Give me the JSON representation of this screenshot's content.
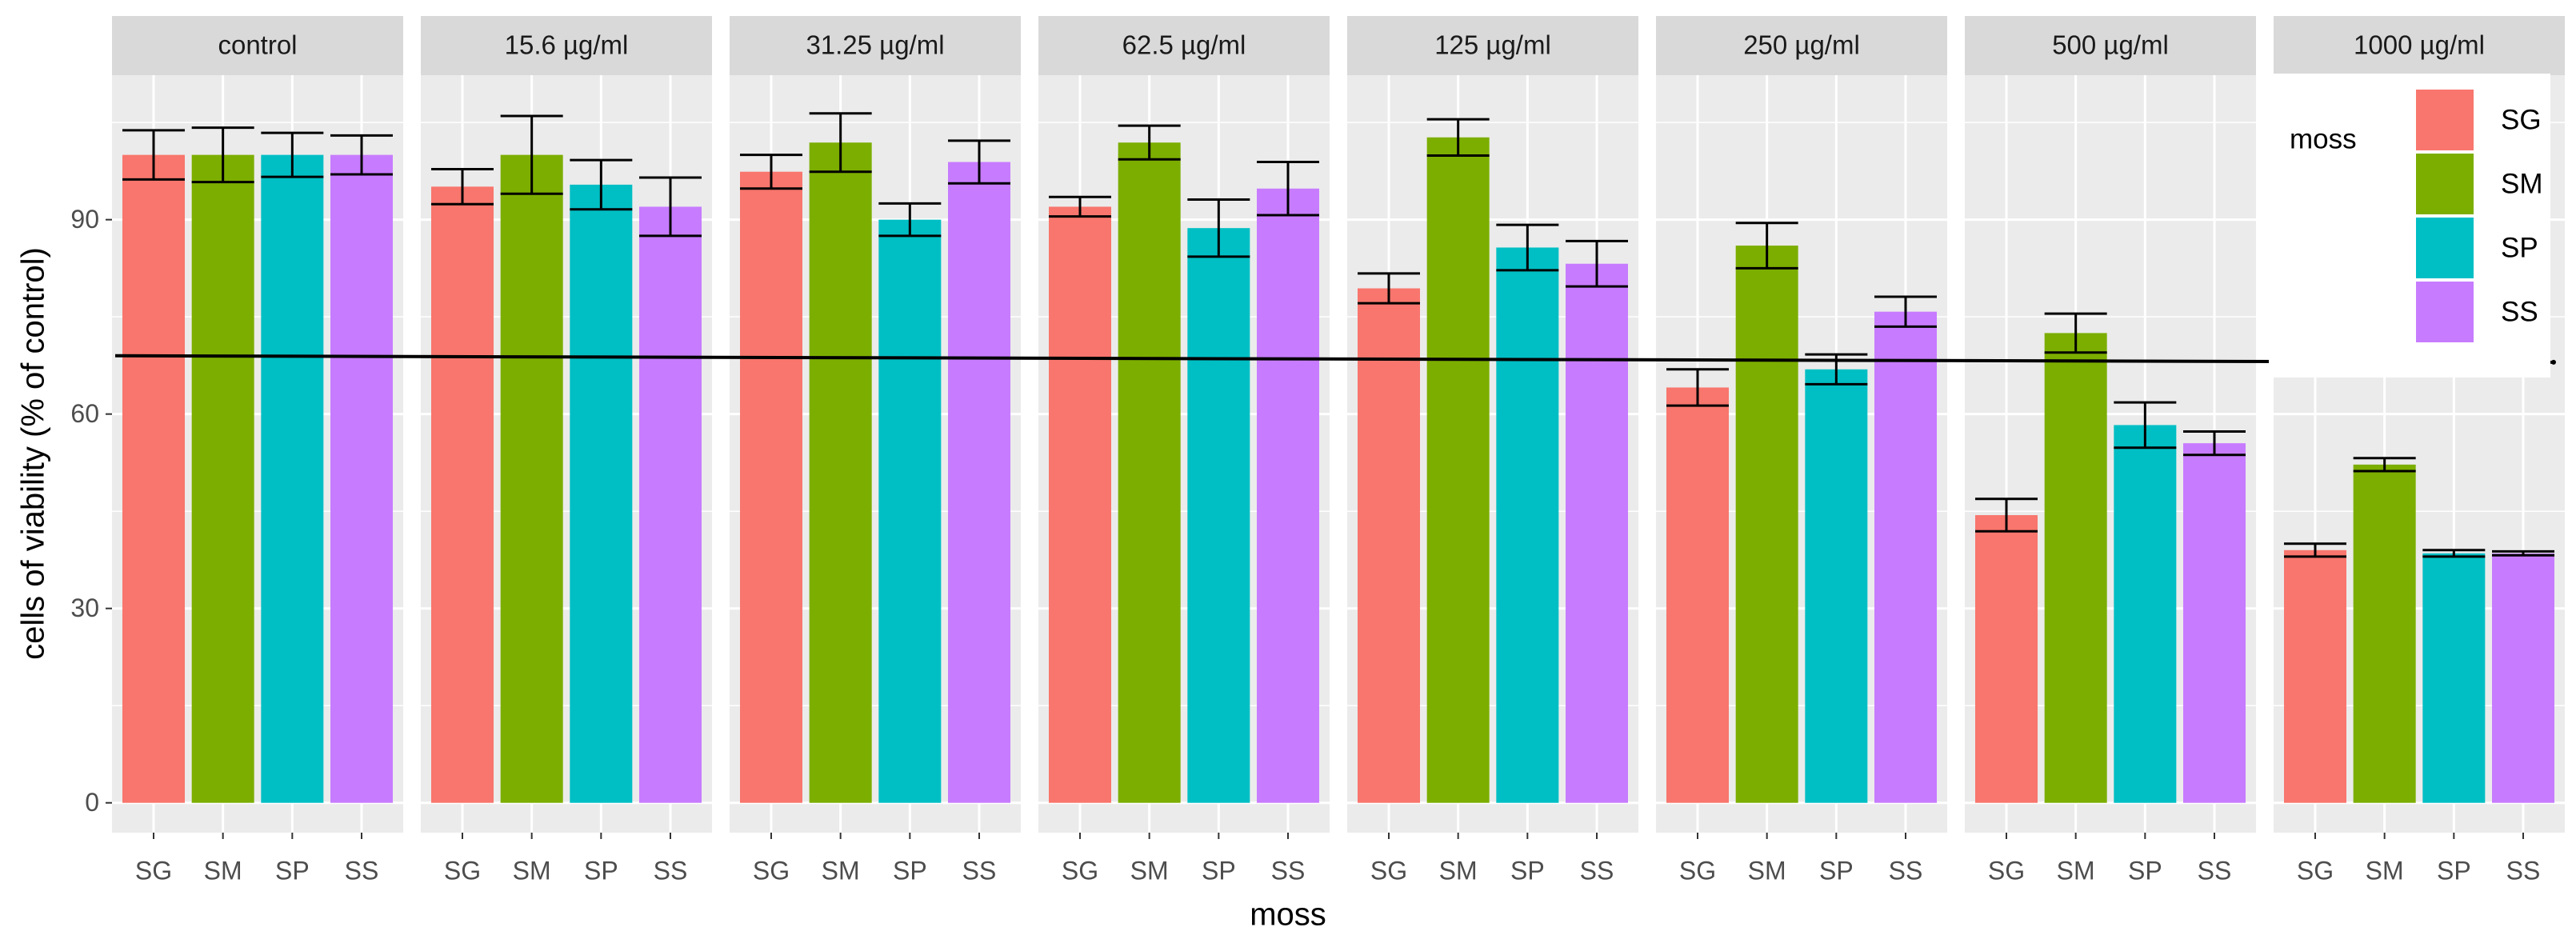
{
  "chart_data": {
    "type": "bar",
    "ylabel": "cells of viability (% of control)",
    "xlabel": "moss",
    "legend_title": "moss",
    "categories": [
      "SG",
      "SM",
      "SP",
      "SS"
    ],
    "colors": [
      "#F8766D",
      "#7CAE00",
      "#00BFC4",
      "#C77CFF"
    ],
    "ylim": [
      -4.6,
      112.3
    ],
    "yticks": [
      0,
      30,
      60,
      90
    ],
    "grid": true,
    "legend": "top-right",
    "reference_line": [
      69,
      68
    ],
    "facets": [
      {
        "title": "control",
        "values": [
          100,
          100,
          100,
          100
        ],
        "errors": [
          3.8,
          4.2,
          3.4,
          3
        ]
      },
      {
        "title": "15.6 µg/ml",
        "values": [
          95.1,
          100,
          95.4,
          92
        ],
        "errors": [
          2.7,
          6,
          3.8,
          4.5
        ]
      },
      {
        "title": "31.25 µg/ml",
        "values": [
          97.4,
          101.9,
          90,
          98.9
        ],
        "errors": [
          2.6,
          4.5,
          2.5,
          3.3
        ]
      },
      {
        "title": "62.5 µg/ml",
        "values": [
          92,
          101.9,
          88.7,
          94.8
        ],
        "errors": [
          1.5,
          2.6,
          4.4,
          4.1
        ]
      },
      {
        "title": "125 µg/ml",
        "values": [
          79.4,
          102.7,
          85.7,
          83.2
        ],
        "errors": [
          2.3,
          2.8,
          3.5,
          3.5
        ]
      },
      {
        "title": "250 µg/ml",
        "values": [
          64.1,
          86,
          66.9,
          75.8
        ],
        "errors": [
          2.8,
          3.5,
          2.3,
          2.3
        ]
      },
      {
        "title": "500 µg/ml",
        "values": [
          44.4,
          72.5,
          58.3,
          55.5
        ],
        "errors": [
          2.5,
          3,
          3.5,
          1.8
        ]
      },
      {
        "title": "1000 µg/ml",
        "values": [
          39,
          52.2,
          38.5,
          38.5
        ],
        "errors": [
          1,
          1,
          0.5,
          0.3
        ]
      }
    ]
  }
}
